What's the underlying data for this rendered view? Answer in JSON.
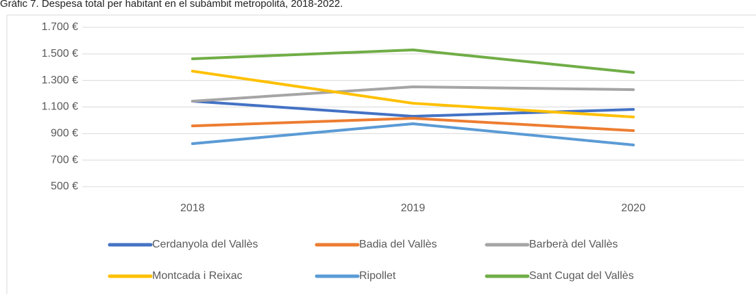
{
  "chart_data": {
    "type": "line",
    "title": "Gràfic 7. Despesa total per habitant en el subàmbit metropolità, 2018-2022.",
    "categories": [
      "2018",
      "2019",
      "2020"
    ],
    "series": [
      {
        "name": "Cerdanyola del Vallès",
        "color": "#4472c4",
        "values": [
          1144,
          1030,
          1082
        ]
      },
      {
        "name": "Badia del Vallès",
        "color": "#ed7d31",
        "values": [
          958,
          1015,
          922
        ]
      },
      {
        "name": "Barberà del Vallès",
        "color": "#a5a5a5",
        "values": [
          1144,
          1252,
          1231
        ]
      },
      {
        "name": "Montcada i Reixac",
        "color": "#ffc000",
        "values": [
          1370,
          1128,
          1025
        ]
      },
      {
        "name": "Ripollet",
        "color": "#5b9bd5",
        "values": [
          824,
          974,
          814
        ]
      },
      {
        "name": "Sant Cugat del Vallès",
        "color": "#70ad47",
        "values": [
          1463,
          1530,
          1360
        ]
      }
    ],
    "ylim": [
      500,
      1700
    ],
    "yticks": [
      {
        "value": 500,
        "label": "500 €"
      },
      {
        "value": 700,
        "label": "700 €"
      },
      {
        "value": 900,
        "label": "900 €"
      },
      {
        "value": 1100,
        "label": "1.100 €"
      },
      {
        "value": 1300,
        "label": "1.300 €"
      },
      {
        "value": 1500,
        "label": "1.500 €"
      },
      {
        "value": 1700,
        "label": "1.700 €"
      }
    ],
    "grid": true,
    "legend": "bottom"
  }
}
